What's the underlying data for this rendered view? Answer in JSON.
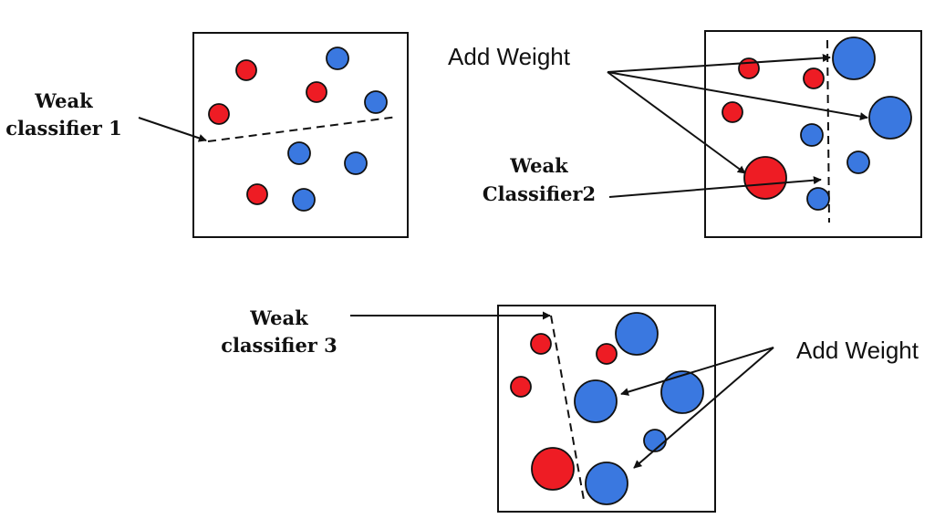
{
  "labels": {
    "weak1_line1": "Weak",
    "weak1_line2": "classifier 1",
    "add_weight_top": "Add Weight",
    "weak2_line1": "Weak",
    "weak2_line2": "Classifier2",
    "weak3_line1": "Weak",
    "weak3_line2": "classifier 3",
    "add_weight_bottom": "Add Weight"
  },
  "colors": {
    "red_sample": "#ee1c24",
    "blue_sample": "#3a78e0",
    "stroke": "#111111"
  },
  "panels": [
    {
      "name": "round-1",
      "samples": [
        {
          "class": "red",
          "weight": "small"
        },
        {
          "class": "blue",
          "weight": "small"
        },
        {
          "class": "red",
          "weight": "small"
        },
        {
          "class": "red",
          "weight": "small"
        },
        {
          "class": "blue",
          "weight": "small"
        },
        {
          "class": "blue",
          "weight": "small"
        },
        {
          "class": "blue",
          "weight": "small"
        },
        {
          "class": "red",
          "weight": "small"
        },
        {
          "class": "blue",
          "weight": "small"
        }
      ]
    },
    {
      "name": "round-2",
      "samples": [
        {
          "class": "red",
          "weight": "small"
        },
        {
          "class": "red",
          "weight": "small"
        },
        {
          "class": "blue",
          "weight": "large"
        },
        {
          "class": "red",
          "weight": "small"
        },
        {
          "class": "blue",
          "weight": "large"
        },
        {
          "class": "blue",
          "weight": "small"
        },
        {
          "class": "blue",
          "weight": "small"
        },
        {
          "class": "red",
          "weight": "large"
        },
        {
          "class": "blue",
          "weight": "small"
        }
      ]
    },
    {
      "name": "round-3",
      "samples": [
        {
          "class": "red",
          "weight": "small"
        },
        {
          "class": "red",
          "weight": "small"
        },
        {
          "class": "blue",
          "weight": "large"
        },
        {
          "class": "red",
          "weight": "small"
        },
        {
          "class": "blue",
          "weight": "large"
        },
        {
          "class": "blue",
          "weight": "large"
        },
        {
          "class": "blue",
          "weight": "small"
        },
        {
          "class": "red",
          "weight": "large"
        },
        {
          "class": "blue",
          "weight": "large"
        }
      ]
    }
  ]
}
